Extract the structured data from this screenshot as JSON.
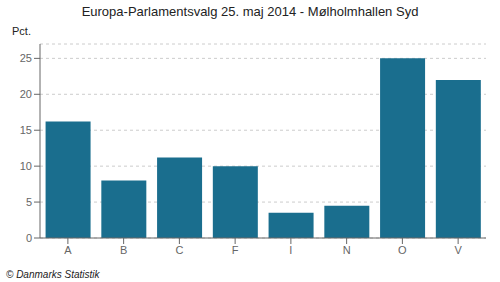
{
  "chart_data": {
    "type": "bar",
    "title": "Europa-Parlamentsvalg 25. maj 2014 - Mølholmhallen Syd",
    "ylabel": "Pct.",
    "annotations": [
      "© Danmarks Statistik"
    ],
    "categories": [
      "A",
      "B",
      "C",
      "F",
      "I",
      "N",
      "O",
      "V"
    ],
    "values": [
      16.2,
      8.0,
      11.2,
      10.0,
      3.5,
      4.5,
      25.0,
      22.0
    ],
    "color": "#1a6e8e",
    "ylim": [
      0,
      27
    ],
    "yticks": [
      0,
      5,
      10,
      15,
      20,
      25
    ],
    "grid": true
  }
}
